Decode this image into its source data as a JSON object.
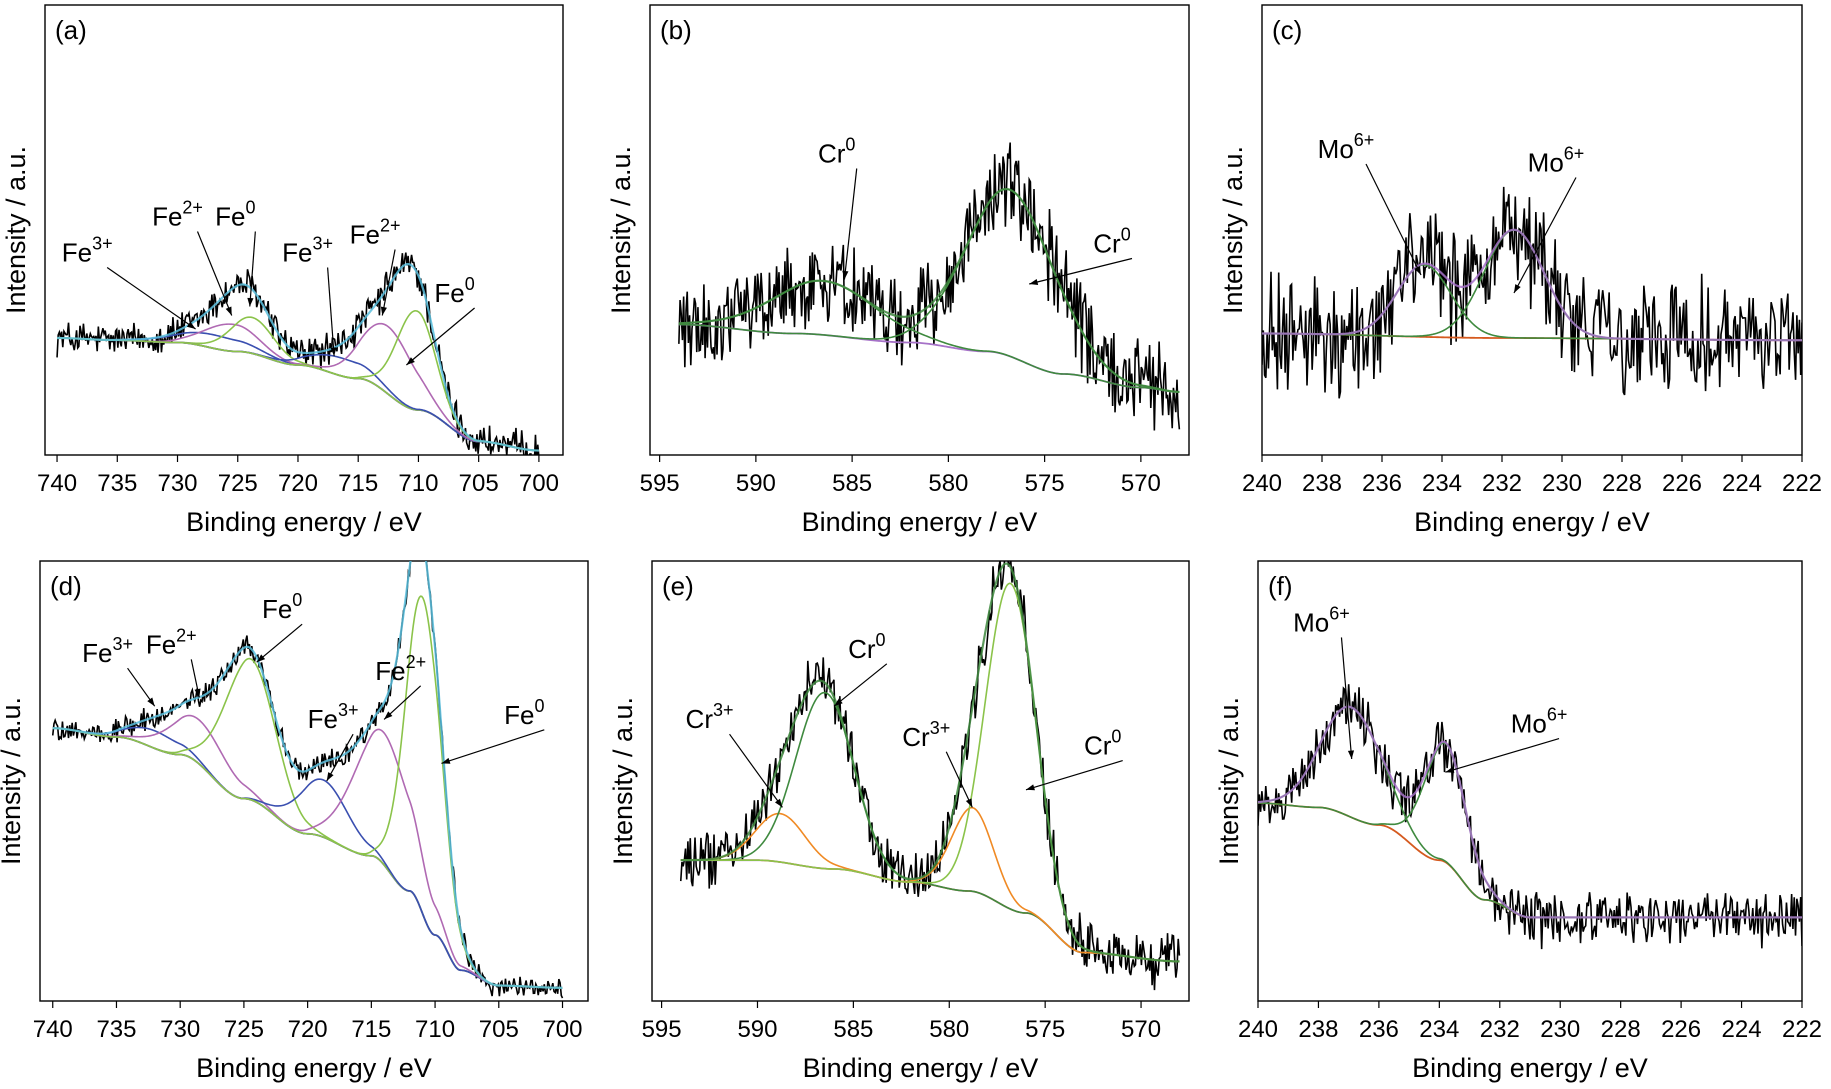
{
  "figure": {
    "n_panels": 6
  },
  "chart_data": [
    {
      "panel": "(a)",
      "type": "line",
      "xlabel": "Binding energy / eV",
      "ylabel": "Intensity / a.u.",
      "xlim": [
        741,
        698
      ],
      "ylim": [
        0,
        1
      ],
      "xticks": [
        740,
        735,
        730,
        725,
        720,
        715,
        710,
        705,
        700
      ],
      "grid": false,
      "legend": "none",
      "noise": 0.03,
      "background": {
        "color": "#4a5cb5",
        "points": [
          [
            740,
            0.26
          ],
          [
            735,
            0.255
          ],
          [
            730,
            0.25
          ],
          [
            725,
            0.23
          ],
          [
            720,
            0.2
          ],
          [
            715,
            0.17
          ],
          [
            710,
            0.1
          ],
          [
            705,
            0.03
          ],
          [
            700,
            0.01
          ]
        ]
      },
      "components": [
        {
          "label": "Fe3+",
          "color": "#3a4fb0",
          "center": 727,
          "amplitude": 0.03,
          "width": 3.0
        },
        {
          "label": "Fe2+",
          "color": "#b06ab3",
          "center": 725.5,
          "amplitude": 0.06,
          "width": 2.2
        },
        {
          "label": "Fe0",
          "color": "#8bc34a",
          "center": 723.8,
          "amplitude": 0.08,
          "width": 1.8
        },
        {
          "label": "Fe3+",
          "color": "#3a4fb0",
          "center": 716.5,
          "amplitude": 0.04,
          "width": 2.5
        },
        {
          "label": "Fe2+",
          "color": "#b06ab3",
          "center": 712.5,
          "amplitude": 0.15,
          "width": 2.2
        },
        {
          "label": "Fe0",
          "color": "#8bc34a",
          "center": 710.2,
          "amplitude": 0.22,
          "width": 1.6
        }
      ],
      "envelope_color": "#5bc0de",
      "annotations": [
        {
          "base": "Fe",
          "sup": "3+",
          "pos": [
            737.5,
            0.43
          ],
          "arrow_to": [
            728.5,
            0.28
          ]
        },
        {
          "base": "Fe",
          "sup": "2+",
          "pos": [
            730.0,
            0.51
          ],
          "arrow_to": [
            725.5,
            0.31
          ]
        },
        {
          "base": "Fe",
          "sup": "0",
          "pos": [
            725.2,
            0.51
          ],
          "arrow_to": [
            724.0,
            0.33
          ]
        },
        {
          "base": "Fe",
          "sup": "3+",
          "pos": [
            719.2,
            0.43
          ],
          "arrow_to": [
            717.0,
            0.22
          ]
        },
        {
          "base": "Fe",
          "sup": "2+",
          "pos": [
            713.6,
            0.47
          ],
          "arrow_to": [
            713.0,
            0.31
          ]
        },
        {
          "base": "Fe",
          "sup": "0",
          "pos": [
            707.0,
            0.34
          ],
          "arrow_to": [
            711.0,
            0.2
          ]
        }
      ]
    },
    {
      "panel": "(b)",
      "type": "line",
      "xlabel": "Binding energy / eV",
      "ylabel": "Intensity / a.u.",
      "xlim": [
        595.5,
        567.5
      ],
      "ylim": [
        0,
        1
      ],
      "xticks": [
        595,
        590,
        585,
        580,
        575,
        570
      ],
      "grid": false,
      "legend": "none",
      "noise": 0.08,
      "background": {
        "color": "#a672c8",
        "points": [
          [
            594,
            0.29
          ],
          [
            588,
            0.27
          ],
          [
            582,
            0.25
          ],
          [
            578,
            0.23
          ],
          [
            574,
            0.18
          ],
          [
            570,
            0.15
          ],
          [
            568,
            0.14
          ]
        ]
      },
      "components": [
        {
          "label": "Cr0",
          "color": "#3f8a3f",
          "center": 586.5,
          "amplitude": 0.12,
          "width": 2.7
        },
        {
          "label": "Cr0",
          "color": "#3f8a3f",
          "center": 576.8,
          "amplitude": 0.37,
          "width": 2.3
        }
      ],
      "envelope_color": "#3f8a3f",
      "annotations": [
        {
          "base": "Cr",
          "sup": "0",
          "pos": [
            585.8,
            0.65
          ],
          "arrow_to": [
            585.4,
            0.39
          ]
        },
        {
          "base": "Cr",
          "sup": "0",
          "pos": [
            571.5,
            0.45
          ],
          "arrow_to": [
            575.8,
            0.38
          ]
        }
      ]
    },
    {
      "panel": "(c)",
      "type": "line",
      "xlabel": "Binding energy / eV",
      "ylabel": "Intensity / a.u.",
      "xlim": [
        240,
        222
      ],
      "ylim": [
        0,
        1
      ],
      "xticks": [
        240,
        238,
        236,
        234,
        232,
        230,
        228,
        226,
        224,
        222
      ],
      "grid": false,
      "legend": "none",
      "noise": 0.1,
      "background": {
        "color": "#d55a1f",
        "points": [
          [
            240,
            0.27
          ],
          [
            232,
            0.26
          ],
          [
            222,
            0.255
          ]
        ]
      },
      "components": [
        {
          "label": "Mo6+",
          "color": "#3f8a3f",
          "center": 234.6,
          "amplitude": 0.16,
          "width": 0.9
        },
        {
          "label": "Mo6+",
          "color": "#3f8a3f",
          "center": 231.6,
          "amplitude": 0.24,
          "width": 1.0
        }
      ],
      "envelope_color": "#a672c8",
      "annotations": [
        {
          "base": "Mo",
          "sup": "6+",
          "pos": [
            237.2,
            0.66
          ],
          "arrow_to": [
            234.7,
            0.4
          ]
        },
        {
          "base": "Mo",
          "sup": "6+",
          "pos": [
            230.2,
            0.63
          ],
          "arrow_to": [
            231.6,
            0.36
          ]
        }
      ]
    },
    {
      "panel": "(d)",
      "type": "line",
      "xlabel": "Binding energy / eV",
      "ylabel": "Intensity / a.u.",
      "xlim": [
        741,
        698
      ],
      "ylim": [
        0,
        1
      ],
      "xticks": [
        740,
        735,
        730,
        725,
        720,
        715,
        710,
        705,
        700
      ],
      "grid": false,
      "legend": "none",
      "noise": 0.02,
      "background": {
        "color": "#3a4fb0",
        "points": [
          [
            740,
            0.62
          ],
          [
            735,
            0.6
          ],
          [
            730,
            0.56
          ],
          [
            725,
            0.46
          ],
          [
            720,
            0.38
          ],
          [
            715,
            0.33
          ],
          [
            712,
            0.25
          ],
          [
            710,
            0.15
          ],
          [
            708,
            0.07
          ],
          [
            705,
            0.035
          ],
          [
            700,
            0.03
          ]
        ]
      },
      "components": [
        {
          "label": "Fe3+",
          "color": "#3a4fb0",
          "center": 732.0,
          "amplitude": 0.04,
          "width": 2.0
        },
        {
          "label": "Fe2+",
          "color": "#b06ab3",
          "center": 728.5,
          "amplitude": 0.1,
          "width": 2.3
        },
        {
          "label": "Fe0",
          "color": "#8bc34a",
          "center": 724.5,
          "amplitude": 0.32,
          "width": 2.0
        },
        {
          "label": "Fe3+",
          "color": "#3a4fb0",
          "center": 718.8,
          "amplitude": 0.13,
          "width": 2.0
        },
        {
          "label": "Fe2+",
          "color": "#b06ab3",
          "center": 714.0,
          "amplitude": 0.3,
          "width": 2.3
        },
        {
          "label": "Fe0",
          "color": "#8bc34a",
          "center": 710.9,
          "amplitude": 0.72,
          "width": 1.4
        }
      ],
      "envelope_color": "#5bc0de",
      "annotations": [
        {
          "base": "Fe",
          "sup": "3+",
          "pos": [
            735.7,
            0.77
          ],
          "arrow_to": [
            732.0,
            0.67
          ]
        },
        {
          "base": "Fe",
          "sup": "2+",
          "pos": [
            730.7,
            0.79
          ],
          "arrow_to": [
            728.5,
            0.69
          ]
        },
        {
          "base": "Fe",
          "sup": "0",
          "pos": [
            722.0,
            0.87
          ],
          "arrow_to": [
            724.0,
            0.77
          ]
        },
        {
          "base": "Fe",
          "sup": "3+",
          "pos": [
            718.0,
            0.62
          ],
          "arrow_to": [
            718.5,
            0.5
          ]
        },
        {
          "base": "Fe",
          "sup": "2+",
          "pos": [
            712.7,
            0.73
          ],
          "arrow_to": [
            714.0,
            0.64
          ]
        },
        {
          "base": "Fe",
          "sup": "0",
          "pos": [
            703.0,
            0.63
          ],
          "arrow_to": [
            709.5,
            0.54
          ]
        }
      ]
    },
    {
      "panel": "(e)",
      "type": "line",
      "xlabel": "Binding energy / eV",
      "ylabel": "Intensity / a.u.",
      "xlim": [
        595.5,
        567.5
      ],
      "ylim": [
        0,
        1
      ],
      "xticks": [
        595,
        590,
        585,
        580,
        575,
        570
      ],
      "grid": false,
      "legend": "none",
      "noise": 0.05,
      "background": {
        "color": "#a672c8",
        "points": [
          [
            594,
            0.32
          ],
          [
            590,
            0.32
          ],
          [
            586,
            0.3
          ],
          [
            582,
            0.27
          ],
          [
            579,
            0.25
          ],
          [
            576,
            0.2
          ],
          [
            573,
            0.11
          ],
          [
            568,
            0.09
          ]
        ]
      },
      "components": [
        {
          "label": "Cr3+",
          "color": "#f08a24",
          "center": 588.8,
          "amplitude": 0.11,
          "width": 1.3
        },
        {
          "label": "Cr0",
          "color": "#3f8a3f",
          "center": 586.5,
          "amplitude": 0.4,
          "width": 1.5
        },
        {
          "label": "Cr3+",
          "color": "#f08a24",
          "center": 578.8,
          "amplitude": 0.19,
          "width": 1.1
        },
        {
          "label": "Cr0",
          "color": "#8bc34a",
          "center": 576.8,
          "amplitude": 0.74,
          "width": 1.3
        }
      ],
      "envelope_color": "#3f8a3f",
      "annotations": [
        {
          "base": "Cr",
          "sup": "3+",
          "pos": [
            592.5,
            0.62
          ],
          "arrow_to": [
            588.7,
            0.44
          ]
        },
        {
          "base": "Cr",
          "sup": "0",
          "pos": [
            584.3,
            0.78
          ],
          "arrow_to": [
            586.0,
            0.67
          ]
        },
        {
          "base": "Cr",
          "sup": "3+",
          "pos": [
            581.2,
            0.58
          ],
          "arrow_to": [
            578.8,
            0.44
          ]
        },
        {
          "base": "Cr",
          "sup": "0",
          "pos": [
            572.0,
            0.56
          ],
          "arrow_to": [
            576.0,
            0.48
          ]
        }
      ]
    },
    {
      "panel": "(f)",
      "type": "line",
      "xlabel": "Binding energy / eV",
      "ylabel": "Intensity / a.u.",
      "xlim": [
        240,
        222
      ],
      "ylim": [
        0,
        1
      ],
      "xticks": [
        240,
        238,
        236,
        234,
        232,
        230,
        228,
        226,
        224,
        222
      ],
      "grid": false,
      "legend": "none",
      "noise": 0.05,
      "background": {
        "color": "#d55a1f",
        "points": [
          [
            240,
            0.45
          ],
          [
            238,
            0.44
          ],
          [
            236,
            0.4
          ],
          [
            234,
            0.32
          ],
          [
            232.5,
            0.23
          ],
          [
            231,
            0.19
          ],
          [
            222,
            0.19
          ]
        ]
      },
      "components": [
        {
          "label": "Mo6+",
          "color": "#3f8a3f",
          "center": 236.9,
          "amplitude": 0.25,
          "width": 1.0
        },
        {
          "label": "Mo6+",
          "color": "#3f8a3f",
          "center": 233.8,
          "amplitude": 0.27,
          "width": 0.7
        }
      ],
      "envelope_color": "#a672c8",
      "annotations": [
        {
          "base": "Mo",
          "sup": "6+",
          "pos": [
            237.9,
            0.84
          ],
          "arrow_to": [
            236.9,
            0.55
          ]
        },
        {
          "base": "Mo",
          "sup": "6+",
          "pos": [
            230.7,
            0.61
          ],
          "arrow_to": [
            233.8,
            0.52
          ]
        }
      ]
    }
  ]
}
